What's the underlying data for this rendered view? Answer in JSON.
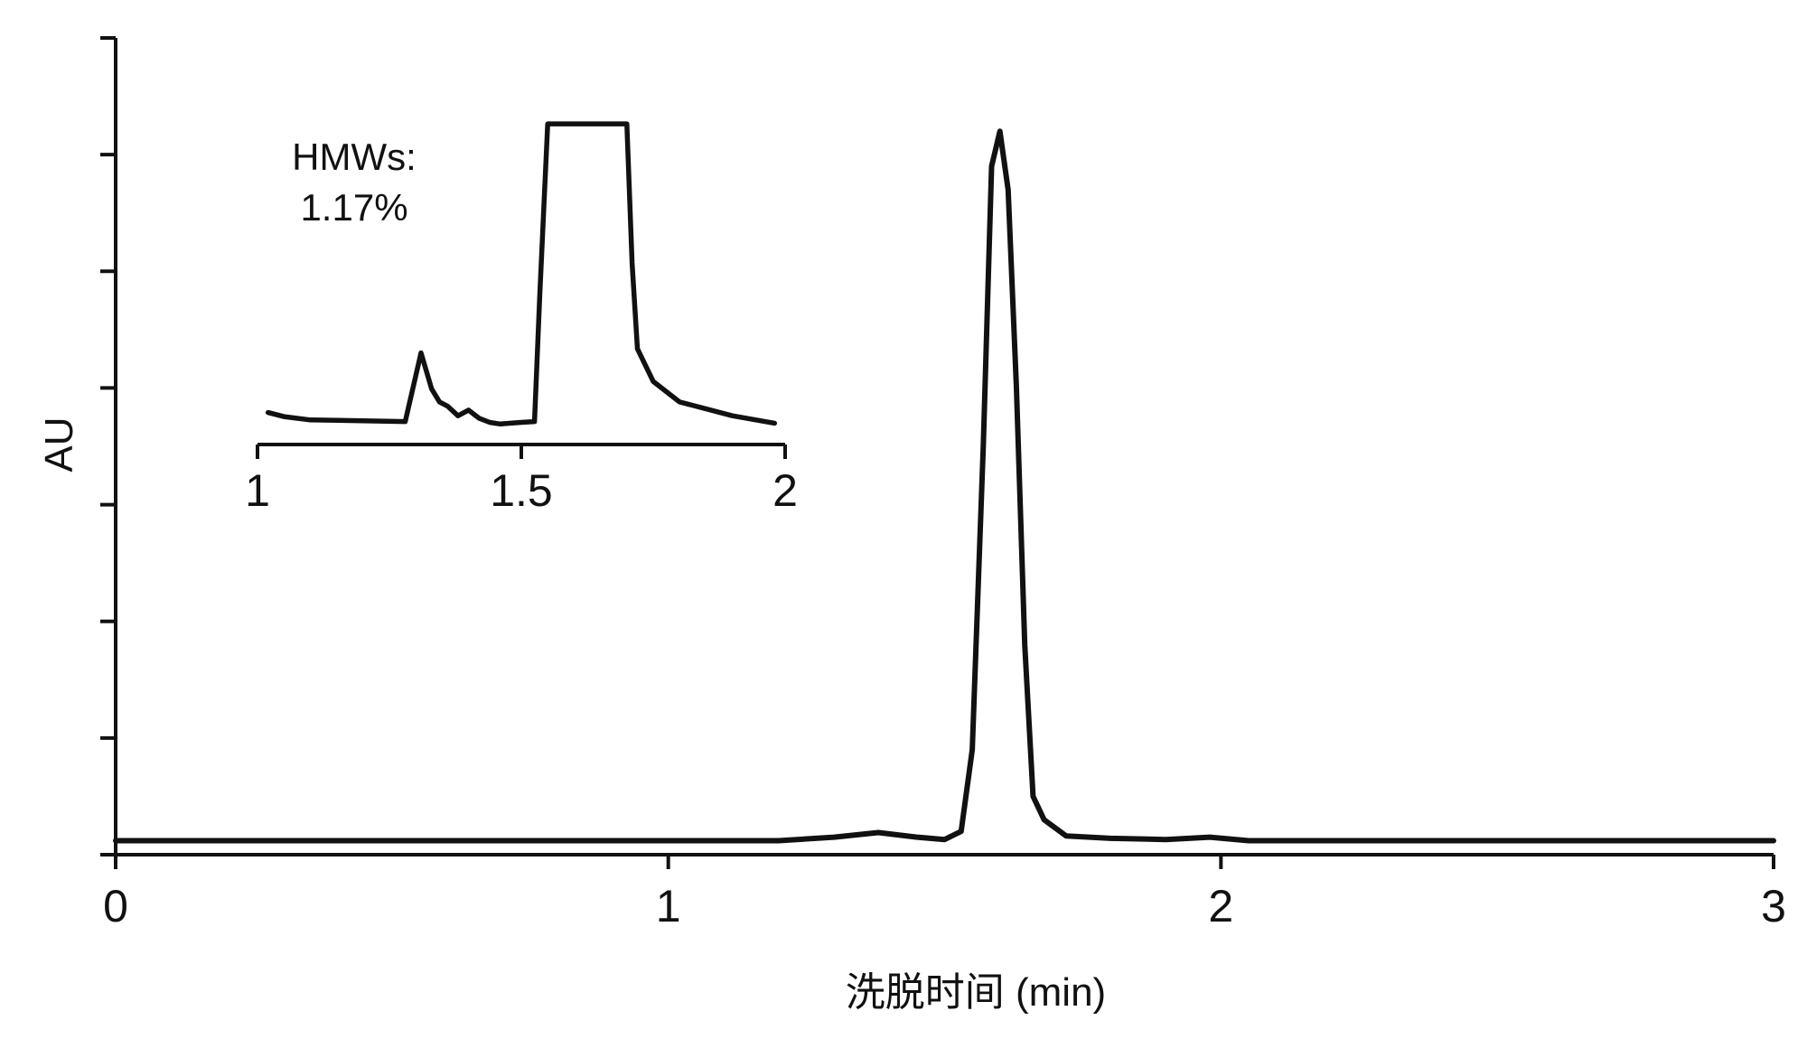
{
  "chart_data": [
    {
      "type": "line",
      "xlabel": "洗脱时间 (min)",
      "ylabel": "AU",
      "xlim": [
        0,
        3
      ],
      "ylim": [
        0,
        7
      ],
      "x_ticks": [
        "0",
        "1",
        "2",
        "3"
      ],
      "y_tick_count": 8,
      "y_tick_labels_shown": false,
      "grid": false,
      "line_color": "#111111",
      "series": [
        {
          "x": [
            0.0,
            1.2,
            1.3,
            1.38,
            1.45,
            1.5,
            1.53,
            1.55,
            1.57,
            1.585,
            1.6,
            1.615,
            1.63,
            1.645,
            1.66,
            1.68,
            1.72,
            1.8,
            1.9,
            1.98,
            2.05,
            2.4,
            3.0
          ],
          "y": [
            0.12,
            0.12,
            0.15,
            0.19,
            0.15,
            0.13,
            0.2,
            0.9,
            3.5,
            5.9,
            6.2,
            5.7,
            4.0,
            1.8,
            0.5,
            0.3,
            0.16,
            0.14,
            0.13,
            0.15,
            0.12,
            0.12,
            0.12
          ]
        }
      ]
    },
    {
      "type": "line",
      "title": "",
      "xlim": [
        1,
        2
      ],
      "x_ticks": [
        "1",
        "1.5",
        "2"
      ],
      "annotation": [
        "HMWs:",
        "1.17%"
      ],
      "line_color": "#111111",
      "series": [
        {
          "x": [
            1.02,
            1.05,
            1.1,
            1.2,
            1.28,
            1.31,
            1.33,
            1.345,
            1.36,
            1.38,
            1.4,
            1.42,
            1.44,
            1.46,
            1.5,
            1.525,
            1.535,
            1.55,
            1.7,
            1.71,
            1.72,
            1.75,
            1.8,
            1.9,
            1.98
          ],
          "y": [
            0.17,
            0.12,
            0.08,
            0.07,
            0.06,
            0.9,
            0.46,
            0.3,
            0.25,
            0.13,
            0.2,
            0.1,
            0.05,
            0.03,
            0.05,
            0.06,
            1.6,
            3.7,
            3.7,
            2.0,
            0.95,
            0.55,
            0.3,
            0.13,
            0.04
          ]
        }
      ]
    }
  ]
}
